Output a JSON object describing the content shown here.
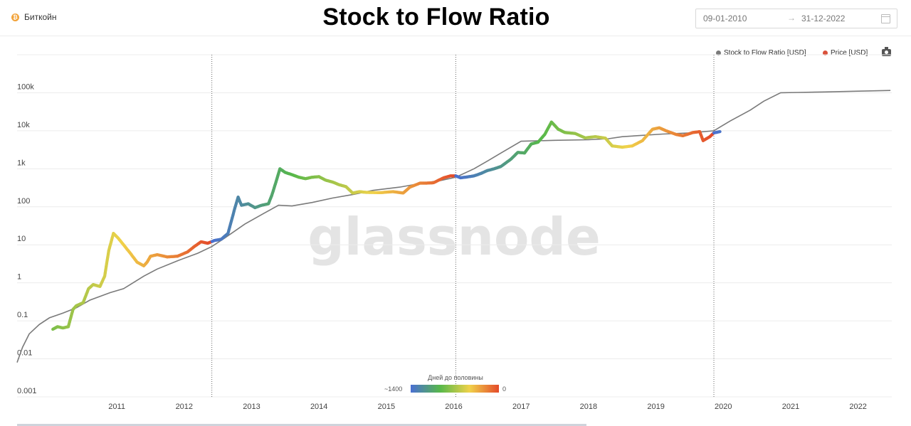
{
  "header": {
    "asset": "Биткойн",
    "asset_icon": "bitcoin-icon",
    "title": "Stock to Flow Ratio",
    "date_from": "09-01-2010",
    "date_arrow": "→",
    "date_to": "31-12-2022"
  },
  "legend": {
    "s2f_label": "Stock to Flow Ratio [USD]",
    "s2f_color": "#7a7a7a",
    "price_label": "Price [USD]",
    "price_color": "#d9503a",
    "camera_icon": "camera-icon"
  },
  "watermark": "glassnode",
  "colorbar": {
    "title": "Дней до половины",
    "left_label": "~1400",
    "right_label": "0",
    "colors": [
      "#4a6fd3",
      "#57b84a",
      "#f0d24a",
      "#e44a2a"
    ]
  },
  "chart_data": {
    "type": "line",
    "title": "Stock to Flow Ratio",
    "yscale": "log",
    "ylim": [
      0.001,
      1000000
    ],
    "y_ticks": [
      0.001,
      0.01,
      0.1,
      1,
      10,
      100,
      1000,
      10000,
      100000
    ],
    "y_tick_labels": [
      "0.001",
      "0.01",
      "0.1",
      "1",
      "10",
      "100",
      "1k",
      "10k",
      "100k"
    ],
    "xlim": [
      2010.02,
      2023.0
    ],
    "x_ticks": [
      2011,
      2012,
      2013,
      2014,
      2015,
      2016,
      2017,
      2018,
      2019,
      2020,
      2021,
      2022
    ],
    "x_tick_labels": [
      "2011",
      "2012",
      "2013",
      "2014",
      "2015",
      "2016",
      "2017",
      "2018",
      "2019",
      "2020",
      "2021",
      "2022"
    ],
    "halvings": [
      2012.91,
      2016.53,
      2020.36
    ],
    "series": [
      {
        "name": "Stock to Flow Ratio [USD]",
        "color": "#7a7a7a",
        "points": [
          [
            2010.02,
            0.008
          ],
          [
            2010.1,
            0.02
          ],
          [
            2010.2,
            0.045
          ],
          [
            2010.35,
            0.08
          ],
          [
            2010.5,
            0.12
          ],
          [
            2010.7,
            0.16
          ],
          [
            2010.9,
            0.22
          ],
          [
            2011.1,
            0.35
          ],
          [
            2011.4,
            0.55
          ],
          [
            2011.6,
            0.7
          ],
          [
            2011.7,
            0.9
          ],
          [
            2011.9,
            1.5
          ],
          [
            2012.1,
            2.3
          ],
          [
            2012.4,
            3.8
          ],
          [
            2012.7,
            6
          ],
          [
            2012.91,
            9
          ],
          [
            2013.1,
            15
          ],
          [
            2013.4,
            35
          ],
          [
            2013.7,
            70
          ],
          [
            2013.9,
            110
          ],
          [
            2014.1,
            105
          ],
          [
            2014.4,
            130
          ],
          [
            2014.7,
            170
          ],
          [
            2015.0,
            210
          ],
          [
            2015.3,
            270
          ],
          [
            2015.7,
            330
          ],
          [
            2016.0,
            410
          ],
          [
            2016.3,
            490
          ],
          [
            2016.53,
            600
          ],
          [
            2016.8,
            1000
          ],
          [
            2017.0,
            1600
          ],
          [
            2017.2,
            2600
          ],
          [
            2017.5,
            5300
          ],
          [
            2018.0,
            5600
          ],
          [
            2018.5,
            5800
          ],
          [
            2018.8,
            6200
          ],
          [
            2019.0,
            7000
          ],
          [
            2019.3,
            7600
          ],
          [
            2019.6,
            8200
          ],
          [
            2020.0,
            8800
          ],
          [
            2020.36,
            10000
          ],
          [
            2020.6,
            18000
          ],
          [
            2020.9,
            35000
          ],
          [
            2021.1,
            60000
          ],
          [
            2021.35,
            100000
          ],
          [
            2021.6,
            102000
          ],
          [
            2022.0,
            105000
          ],
          [
            2022.5,
            110000
          ],
          [
            2022.98,
            115000
          ]
        ]
      },
      {
        "name": "Price [USD]",
        "color": "#d9503a",
        "points": [
          [
            2010.55,
            0.06
          ],
          [
            2010.62,
            0.07
          ],
          [
            2010.7,
            0.065
          ],
          [
            2010.78,
            0.07
          ],
          [
            2010.85,
            0.2
          ],
          [
            2010.9,
            0.25
          ],
          [
            2011.0,
            0.3
          ],
          [
            2011.08,
            0.7
          ],
          [
            2011.15,
            0.9
          ],
          [
            2011.25,
            0.8
          ],
          [
            2011.32,
            1.5
          ],
          [
            2011.38,
            7
          ],
          [
            2011.45,
            20
          ],
          [
            2011.52,
            15
          ],
          [
            2011.6,
            10
          ],
          [
            2011.7,
            6
          ],
          [
            2011.8,
            3.5
          ],
          [
            2011.9,
            2.8
          ],
          [
            2011.95,
            3.5
          ],
          [
            2012.0,
            5
          ],
          [
            2012.1,
            5.5
          ],
          [
            2012.25,
            4.8
          ],
          [
            2012.4,
            5
          ],
          [
            2012.55,
            6.5
          ],
          [
            2012.65,
            9
          ],
          [
            2012.75,
            12
          ],
          [
            2012.85,
            11
          ],
          [
            2012.95,
            13
          ],
          [
            2013.05,
            14
          ],
          [
            2013.15,
            20
          ],
          [
            2013.25,
            90
          ],
          [
            2013.3,
            180
          ],
          [
            2013.35,
            110
          ],
          [
            2013.45,
            120
          ],
          [
            2013.55,
            95
          ],
          [
            2013.65,
            110
          ],
          [
            2013.75,
            120
          ],
          [
            2013.8,
            200
          ],
          [
            2013.87,
            500
          ],
          [
            2013.92,
            1000
          ],
          [
            2014.0,
            800
          ],
          [
            2014.1,
            700
          ],
          [
            2014.2,
            600
          ],
          [
            2014.3,
            550
          ],
          [
            2014.4,
            600
          ],
          [
            2014.5,
            620
          ],
          [
            2014.6,
            500
          ],
          [
            2014.7,
            450
          ],
          [
            2014.8,
            380
          ],
          [
            2014.9,
            340
          ],
          [
            2015.0,
            230
          ],
          [
            2015.1,
            250
          ],
          [
            2015.2,
            240
          ],
          [
            2015.4,
            235
          ],
          [
            2015.6,
            250
          ],
          [
            2015.75,
            230
          ],
          [
            2015.85,
            330
          ],
          [
            2016.0,
            420
          ],
          [
            2016.1,
            420
          ],
          [
            2016.2,
            430
          ],
          [
            2016.35,
            580
          ],
          [
            2016.45,
            650
          ],
          [
            2016.53,
            650
          ],
          [
            2016.6,
            580
          ],
          [
            2016.7,
            610
          ],
          [
            2016.8,
            650
          ],
          [
            2016.9,
            750
          ],
          [
            2017.0,
            900
          ],
          [
            2017.1,
            1000
          ],
          [
            2017.2,
            1150
          ],
          [
            2017.35,
            1800
          ],
          [
            2017.45,
            2700
          ],
          [
            2017.55,
            2600
          ],
          [
            2017.65,
            4500
          ],
          [
            2017.75,
            5000
          ],
          [
            2017.85,
            8000
          ],
          [
            2017.95,
            17000
          ],
          [
            2018.05,
            11000
          ],
          [
            2018.15,
            9000
          ],
          [
            2018.3,
            8500
          ],
          [
            2018.45,
            6500
          ],
          [
            2018.6,
            7000
          ],
          [
            2018.75,
            6400
          ],
          [
            2018.85,
            4000
          ],
          [
            2019.0,
            3700
          ],
          [
            2019.15,
            4000
          ],
          [
            2019.3,
            5500
          ],
          [
            2019.45,
            11000
          ],
          [
            2019.55,
            12000
          ],
          [
            2019.65,
            10000
          ],
          [
            2019.8,
            8000
          ],
          [
            2019.9,
            7400
          ],
          [
            2020.05,
            9000
          ],
          [
            2020.15,
            9500
          ],
          [
            2020.2,
            5500
          ],
          [
            2020.3,
            7000
          ],
          [
            2020.36,
            8800
          ],
          [
            2020.45,
            9500
          ]
        ]
      }
    ]
  }
}
